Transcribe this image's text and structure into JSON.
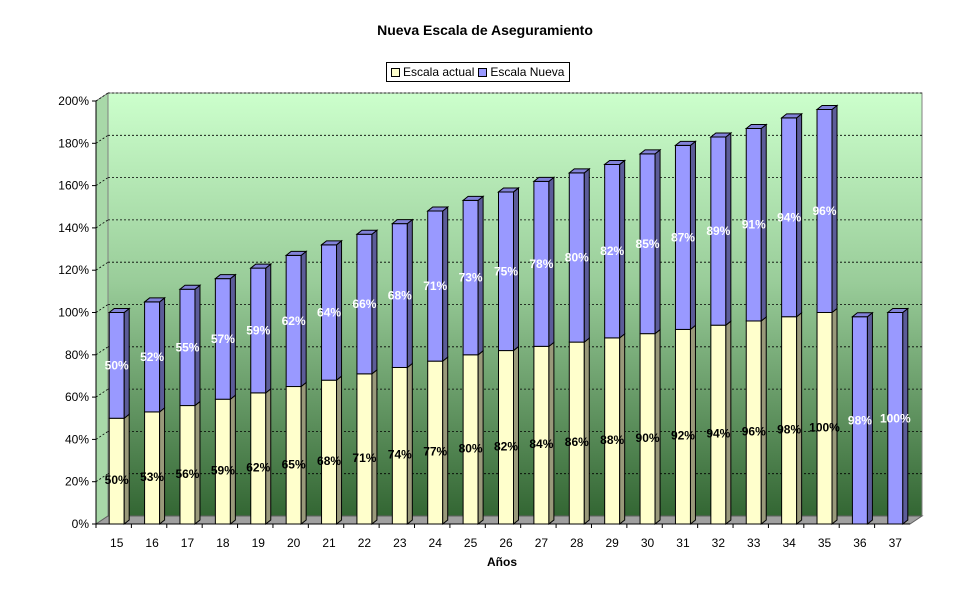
{
  "chart_data": {
    "type": "bar",
    "stacked": true,
    "title": "Nueva Escala de Aseguramiento",
    "xlabel": "Años",
    "ylabel": "",
    "ylim": [
      0,
      200
    ],
    "y_ticks": [
      "0%",
      "20%",
      "40%",
      "60%",
      "80%",
      "100%",
      "120%",
      "140%",
      "160%",
      "180%",
      "200%"
    ],
    "grid": true,
    "legend_position": "top-center",
    "categories": [
      "15",
      "16",
      "17",
      "18",
      "19",
      "20",
      "21",
      "22",
      "23",
      "24",
      "25",
      "26",
      "27",
      "28",
      "29",
      "30",
      "31",
      "32",
      "33",
      "34",
      "35",
      "36",
      "37"
    ],
    "series": [
      {
        "name": "Escala actual",
        "color": "#ffffcc",
        "values": [
          50,
          53,
          56,
          59,
          62,
          65,
          68,
          71,
          74,
          77,
          80,
          82,
          84,
          86,
          88,
          90,
          92,
          94,
          96,
          98,
          100,
          0,
          0
        ],
        "labels": [
          "50%",
          "53%",
          "56%",
          "59%",
          "62%",
          "65%",
          "68%",
          "71%",
          "74%",
          "77%",
          "80%",
          "82%",
          "84%",
          "86%",
          "88%",
          "90%",
          "92%",
          "94%",
          "96%",
          "98%",
          "100%",
          "",
          ""
        ]
      },
      {
        "name": "Escala Nueva",
        "color": "#9999ff",
        "values": [
          50,
          52,
          55,
          57,
          59,
          62,
          64,
          66,
          68,
          71,
          73,
          75,
          78,
          80,
          82,
          85,
          87,
          89,
          91,
          94,
          96,
          98,
          100
        ],
        "labels": [
          "50%",
          "52%",
          "55%",
          "57%",
          "59%",
          "62%",
          "64%",
          "66%",
          "68%",
          "71%",
          "73%",
          "75%",
          "78%",
          "80%",
          "82%",
          "85%",
          "87%",
          "89%",
          "91%",
          "94%",
          "96%",
          "98%",
          "100%"
        ]
      }
    ]
  }
}
